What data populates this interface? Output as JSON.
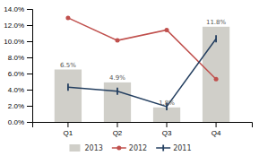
{
  "chart_data": {
    "type": "bar",
    "categories": [
      "Q1",
      "Q2",
      "Q3",
      "Q4"
    ],
    "series": [
      {
        "name": "2013",
        "type": "bar",
        "color": "#d0cfc9",
        "values": [
          6.5,
          4.9,
          1.8,
          11.8
        ],
        "value_labels": [
          "6.5%",
          "4.9%",
          "1.8%",
          "11.8%"
        ],
        "data_labels": true
      },
      {
        "name": "2012",
        "type": "line",
        "color": "#c0504d",
        "marker": "circle",
        "values": [
          12.9,
          10.1,
          11.4,
          5.3
        ]
      },
      {
        "name": "2011",
        "type": "line",
        "color": "#243f60",
        "marker": "vline",
        "values": [
          4.3,
          3.8,
          1.9,
          10.3
        ]
      }
    ],
    "ylim": [
      0,
      14.0
    ],
    "yticks": [
      {
        "value": 0.0,
        "label": "0.0%"
      },
      {
        "value": 2.0,
        "label": "2.0%"
      },
      {
        "value": 4.0,
        "label": "4.0%"
      },
      {
        "value": 6.0,
        "label": "6.0%"
      },
      {
        "value": 8.0,
        "label": "8.0%"
      },
      {
        "value": 10.0,
        "label": "10.0%"
      },
      {
        "value": 12.0,
        "label": "12.0%"
      },
      {
        "value": 14.0,
        "label": "14.0%"
      }
    ],
    "grid": false,
    "legend": "bottom"
  }
}
